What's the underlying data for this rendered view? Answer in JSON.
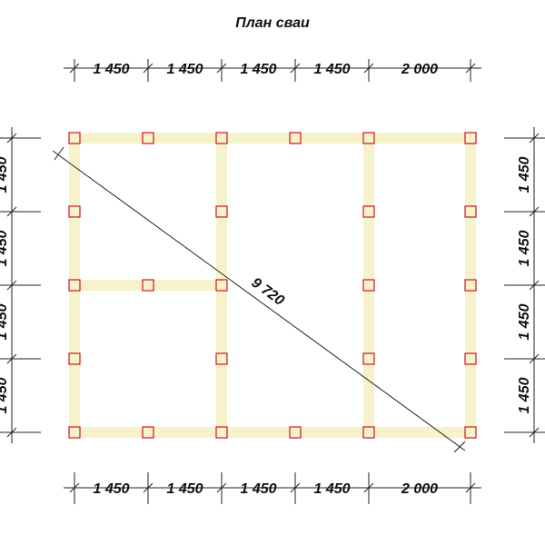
{
  "title": "План сваи",
  "top_dims": [
    "1 450",
    "1 450",
    "1 450",
    "1 450",
    "2 000"
  ],
  "bottom_dims": [
    "1 450",
    "1 450",
    "1 450",
    "1 450",
    "2 000"
  ],
  "left_dims": [
    "1 450",
    "1 450",
    "1 450",
    "1 450"
  ],
  "right_dims": [
    "1 450",
    "1 450",
    "1 450",
    "1 450"
  ],
  "diagonal": "9 720"
}
